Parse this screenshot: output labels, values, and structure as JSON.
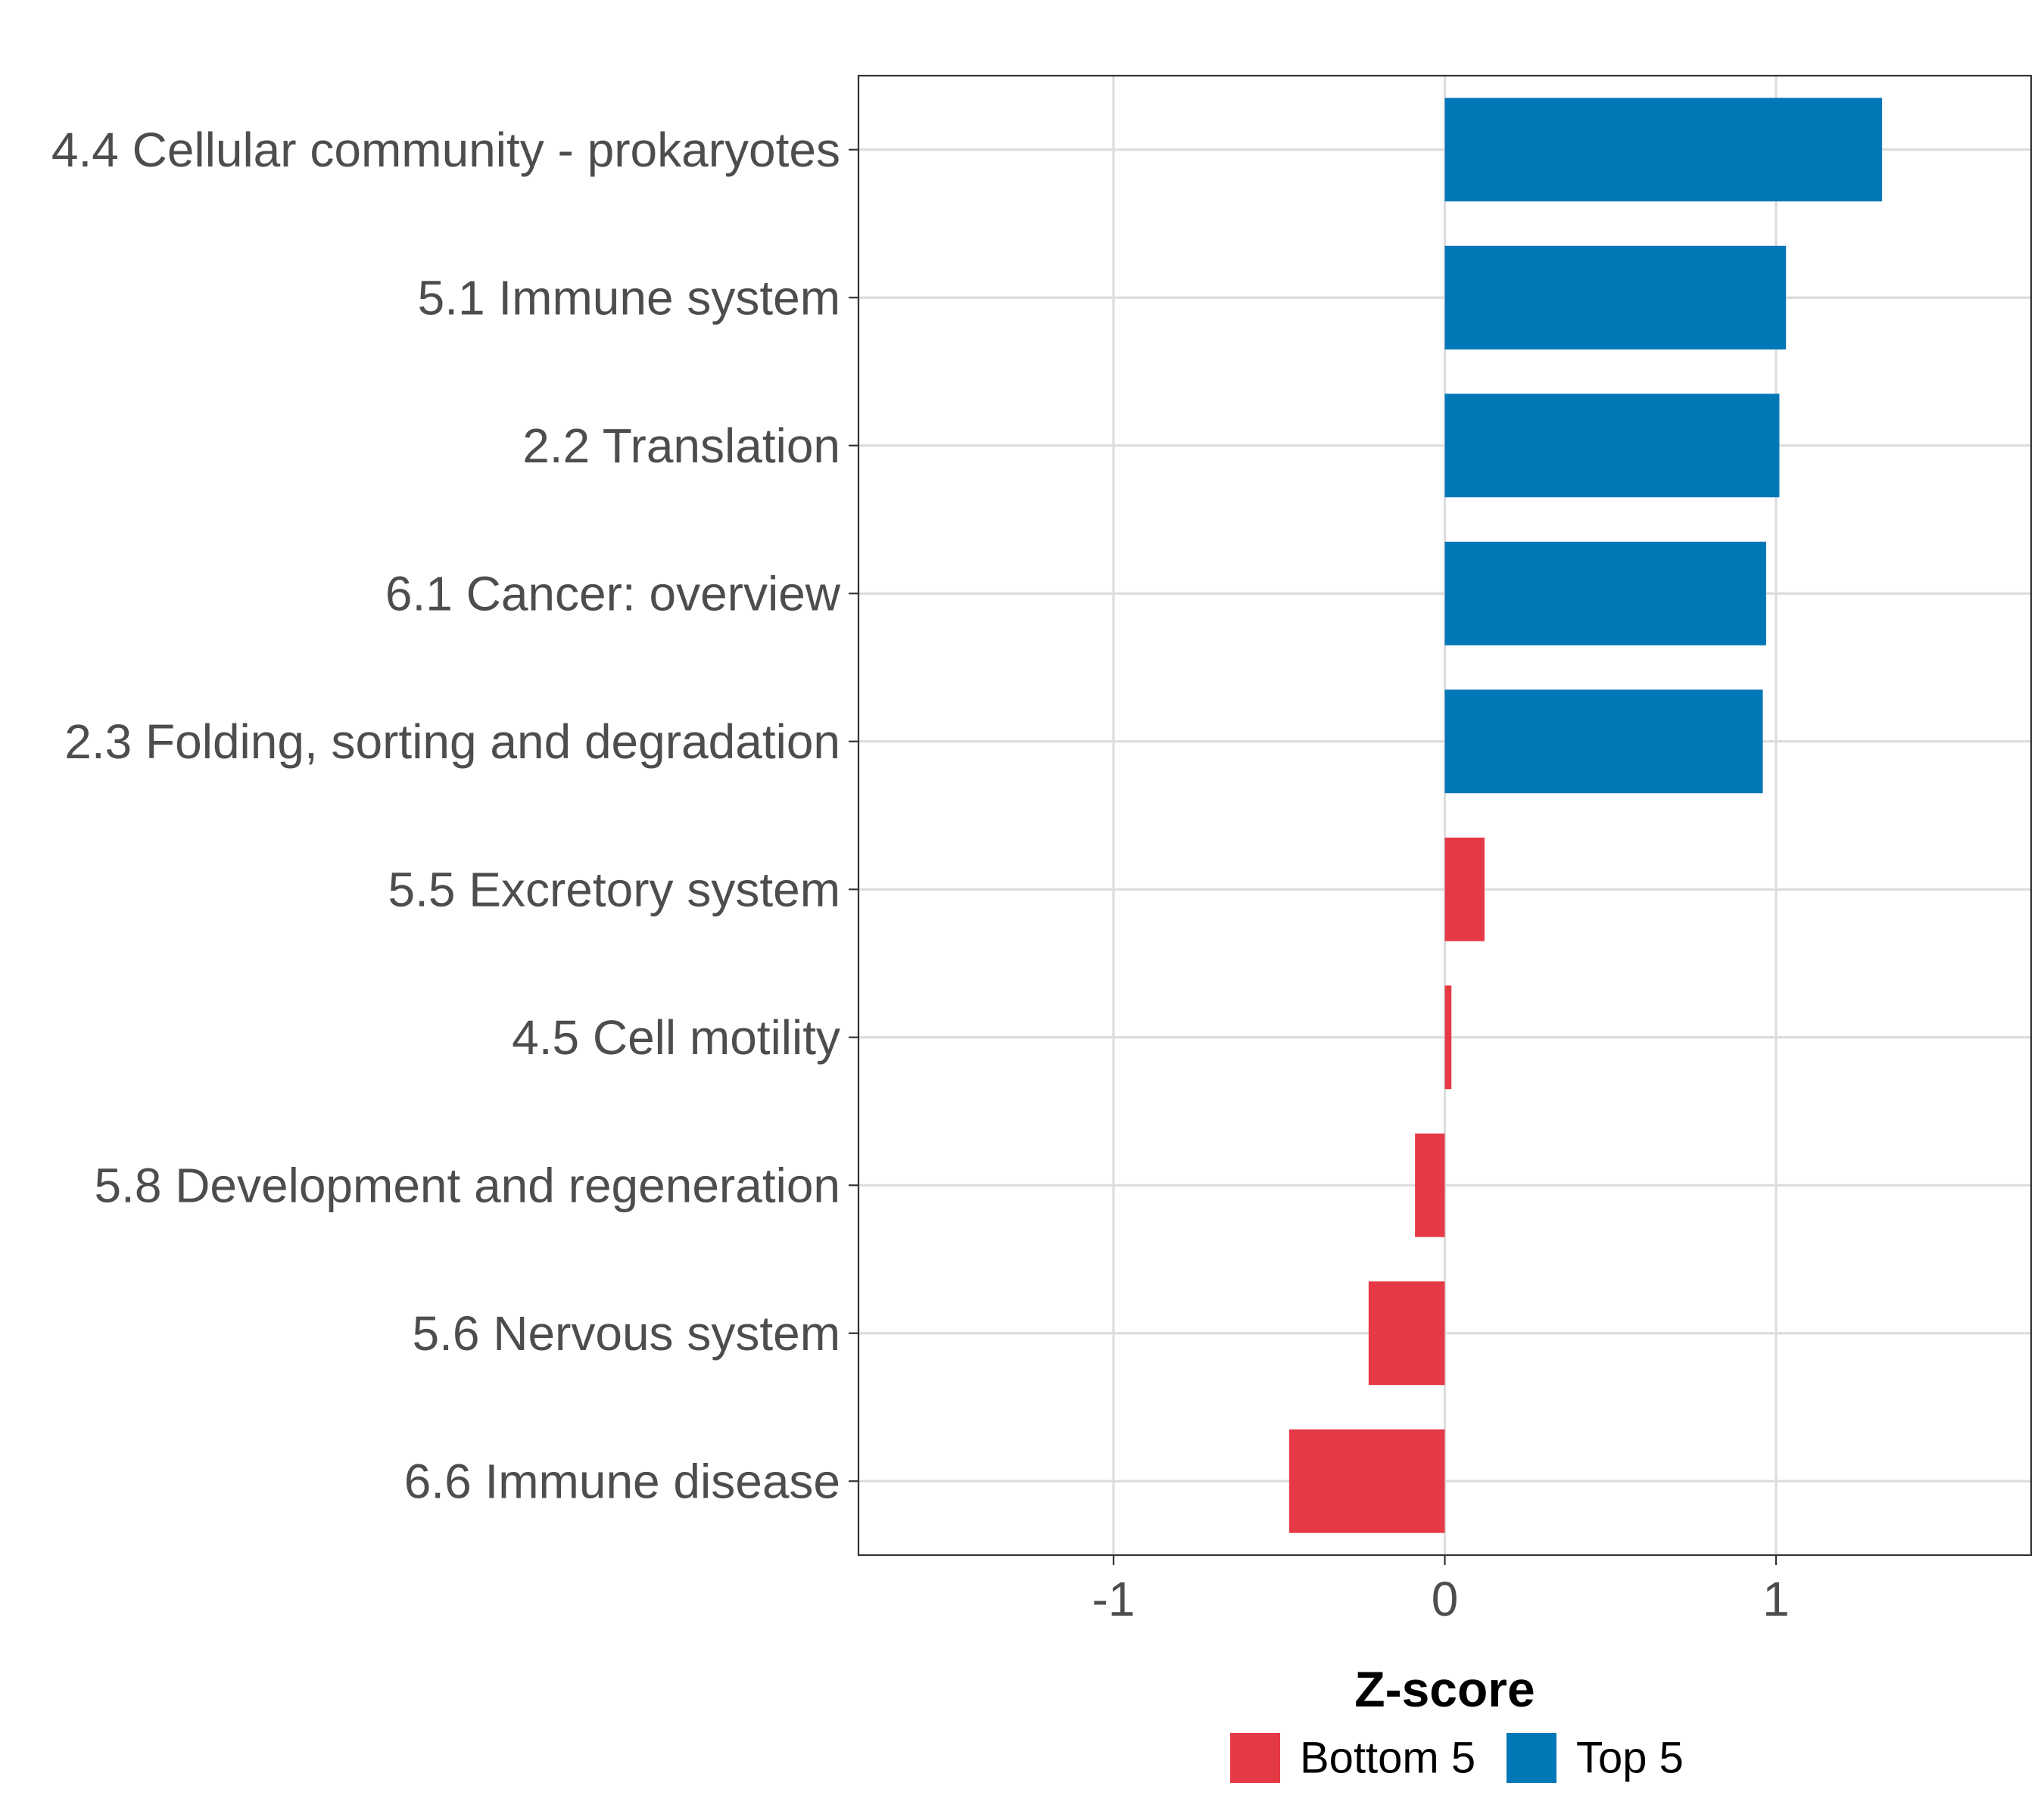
{
  "chart_data": {
    "type": "bar",
    "orientation": "horizontal",
    "categories": [
      "4.4 Cellular community - prokaryotes",
      "5.1 Immune system",
      "2.2 Translation",
      "6.1 Cancer: overview",
      "2.3 Folding, sorting and degradation",
      "5.5 Excretory system",
      "4.5 Cell motility",
      "5.8 Development and regeneration",
      "5.6 Nervous system",
      "6.6 Immune disease"
    ],
    "values": [
      1.32,
      1.03,
      1.01,
      0.97,
      0.96,
      0.12,
      0.02,
      -0.09,
      -0.23,
      -0.47
    ],
    "groups": [
      "Top 5",
      "Top 5",
      "Top 5",
      "Top 5",
      "Top 5",
      "Bottom 5",
      "Bottom 5",
      "Bottom 5",
      "Bottom 5",
      "Bottom 5"
    ],
    "title": "",
    "xlabel": "Z-score",
    "ylabel": "",
    "xlim": [
      -1.77,
      1.77
    ],
    "xticks": [
      -1,
      0,
      1
    ],
    "xtick_labels": [
      "-1",
      "0",
      "1"
    ],
    "grid": true,
    "legend_position": "bottom",
    "legend": [
      {
        "label": "Bottom 5",
        "color": "#E63946"
      },
      {
        "label": "Top 5",
        "color": "#0077B6"
      }
    ]
  }
}
